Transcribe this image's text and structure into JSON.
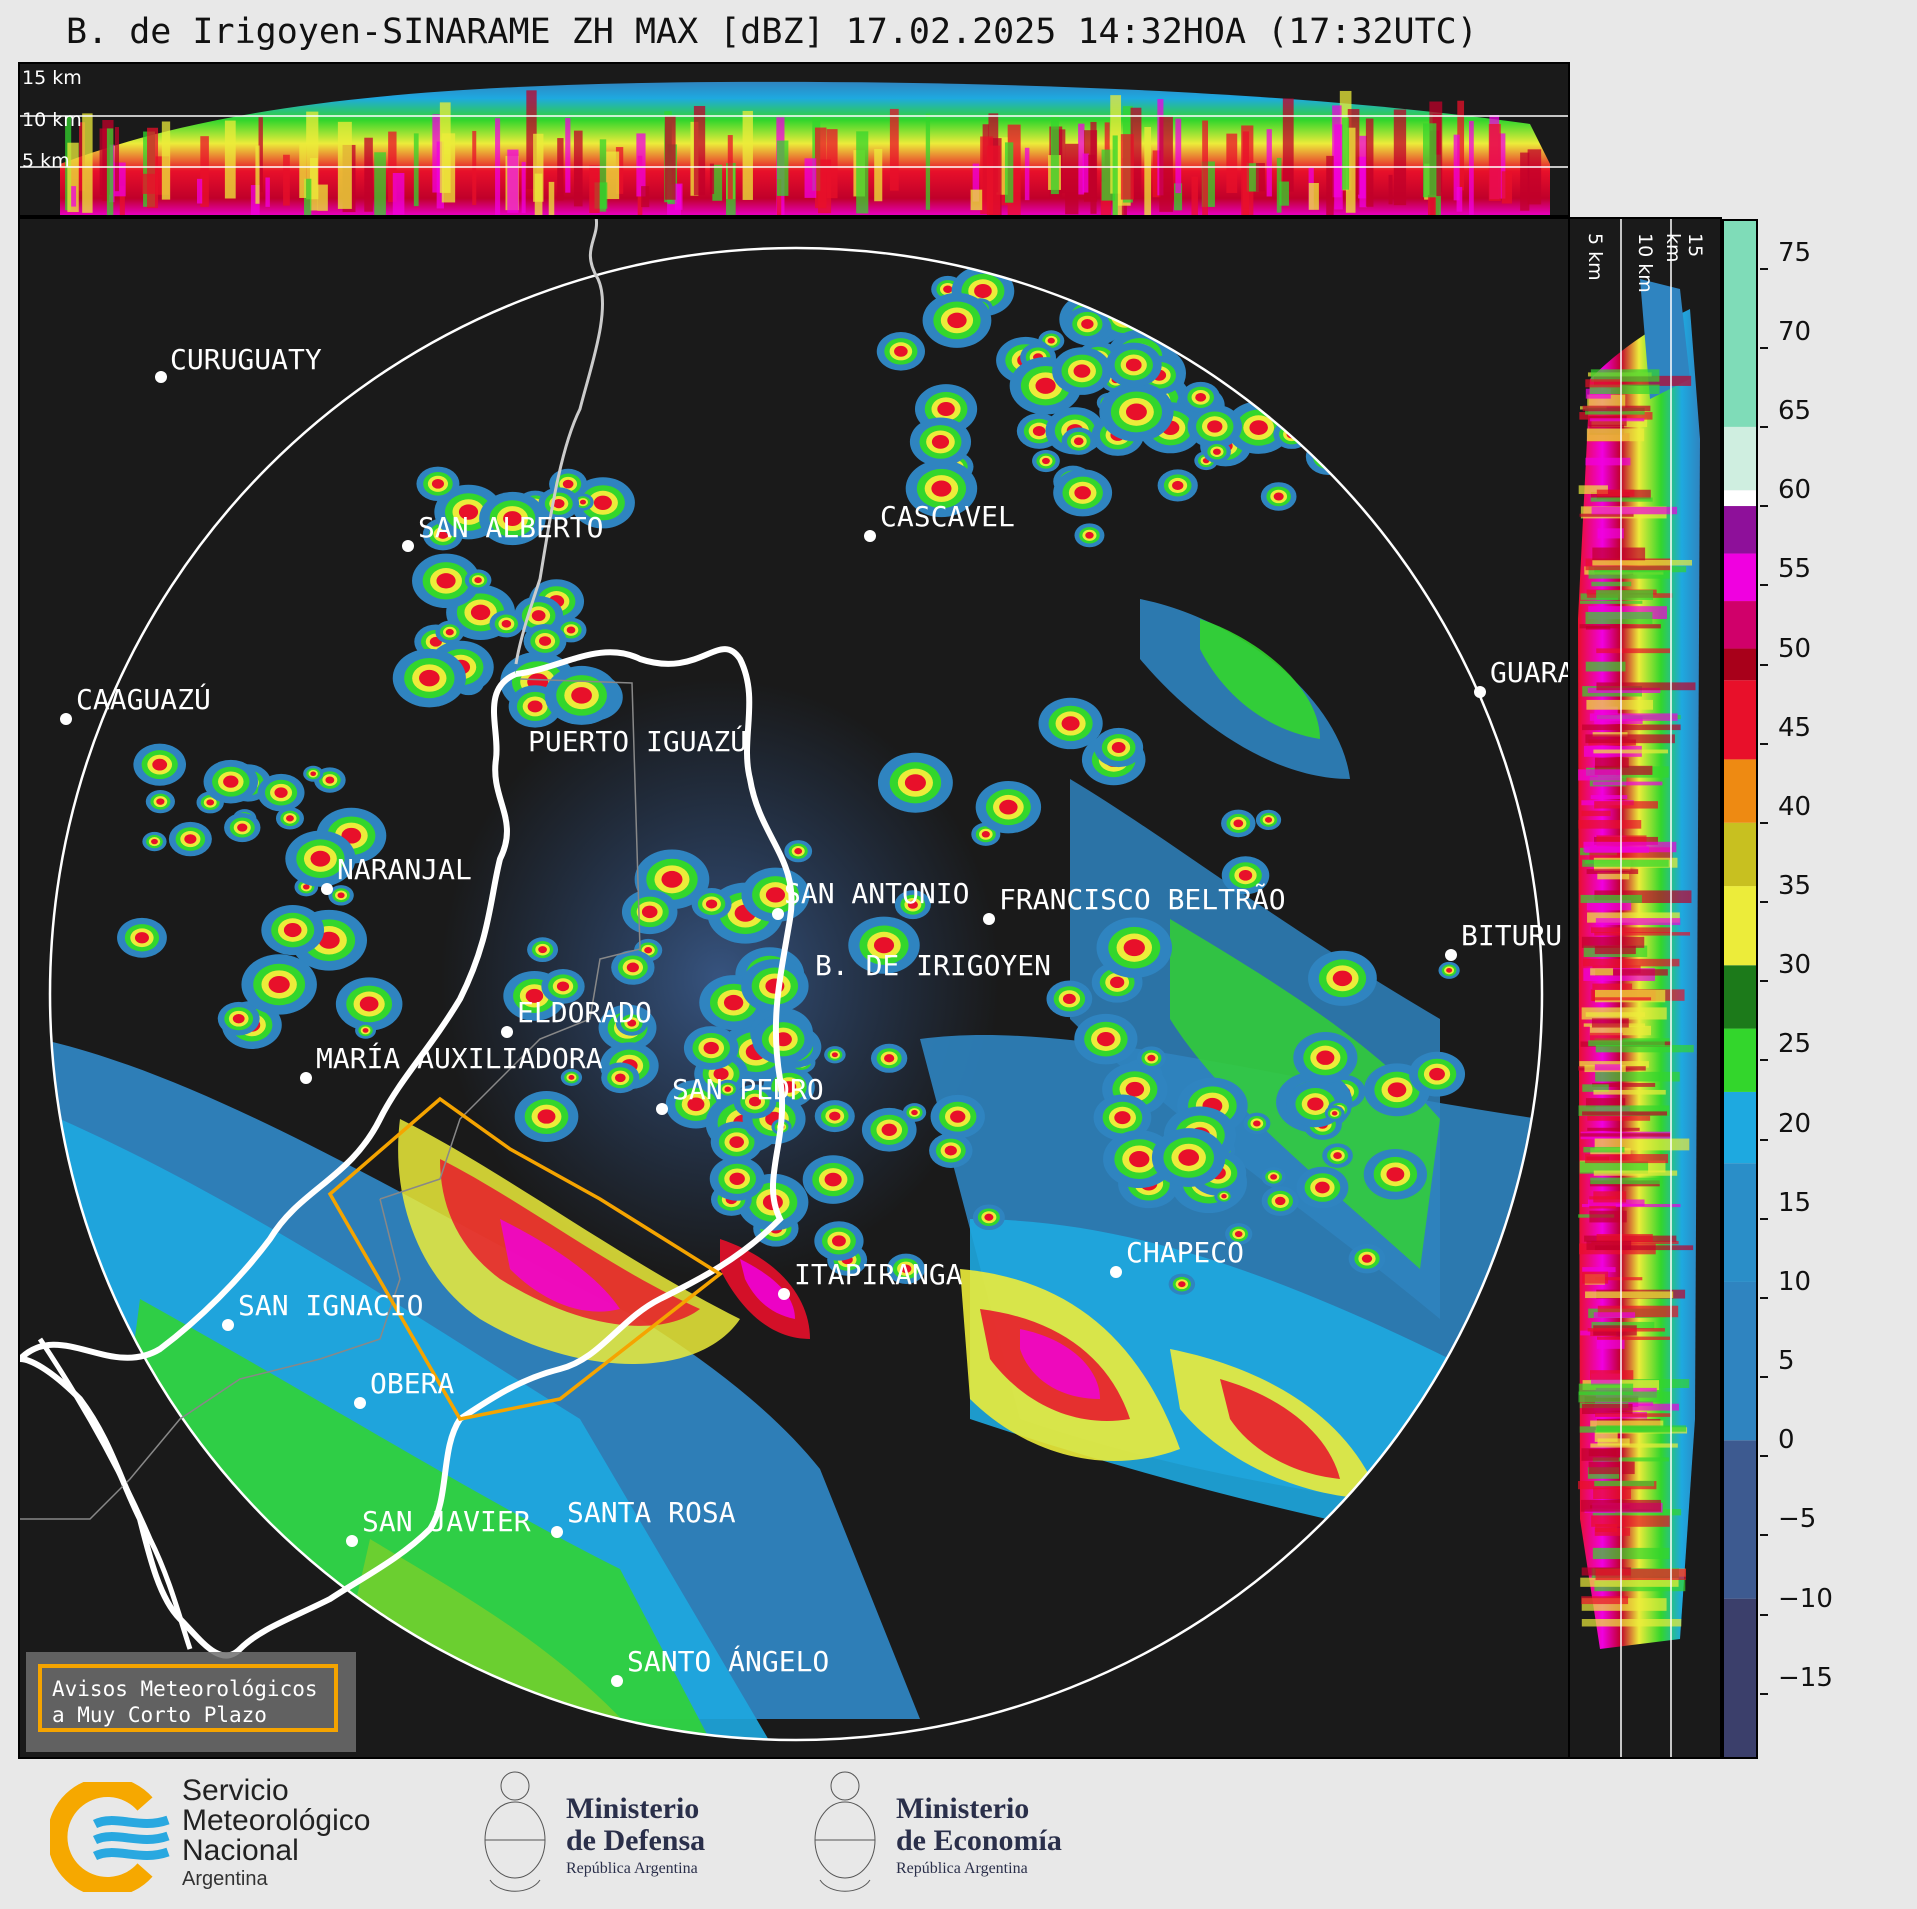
{
  "title": "B. de Irigoyen-SINARAME ZH MAX [dBZ] 17.02.2025 14:32HOA (17:32UTC)",
  "top_panel": {
    "height_labels": [
      "15 km",
      "10 km",
      "5 km"
    ]
  },
  "side_panel": {
    "height_labels": [
      "5 km",
      "10 km",
      "15 km"
    ]
  },
  "colorbar": {
    "unit": "dBZ",
    "range": [
      -20,
      77
    ],
    "ticks": [
      "75",
      "70",
      "65",
      "60",
      "55",
      "50",
      "45",
      "40",
      "35",
      "30",
      "25",
      "20",
      "15",
      "10",
      "5",
      "0",
      "−5",
      "−10",
      "−15"
    ],
    "tick_values": [
      75,
      70,
      65,
      60,
      55,
      50,
      45,
      40,
      35,
      30,
      25,
      20,
      15,
      10,
      5,
      0,
      -5,
      -10,
      -15
    ],
    "colors": {
      "dark_blue": "#3b3f6b",
      "blue": "#2f84c0",
      "light_blue": "#1ea9e0",
      "green": "#33d62c",
      "dark_green": "#1c7a1a",
      "yellow": "#ecec3a",
      "orange": "#ee8a12",
      "red": "#e8102a",
      "dark_red": "#a8001a",
      "magenta": "#f000e0",
      "purple": "#8e109a",
      "white": "#ffffff",
      "mint": "#7fdcb8"
    }
  },
  "map": {
    "cities": [
      {
        "name": "CURUGUATY"
      },
      {
        "name": "SAN ALBERTO"
      },
      {
        "name": "CASCAVEL"
      },
      {
        "name": "CAAGUAZÚ"
      },
      {
        "name": "GUARA"
      },
      {
        "name": "PUERTO IGUAZÚ"
      },
      {
        "name": "NARANJAL"
      },
      {
        "name": "SAN ANTONIO"
      },
      {
        "name": "FRANCISCO BELTRÃO"
      },
      {
        "name": "B. DE IRIGOYEN"
      },
      {
        "name": "BITURU"
      },
      {
        "name": "ELDORADO"
      },
      {
        "name": "MARÍA AUXILIADORA"
      },
      {
        "name": "SAN PEDRO"
      },
      {
        "name": "CHAPECO"
      },
      {
        "name": "ITAPIRANGA"
      },
      {
        "name": "SAN IGNACIO"
      },
      {
        "name": "OBERA"
      },
      {
        "name": "SAN JAVIER"
      },
      {
        "name": "SANTA ROSA"
      },
      {
        "name": "SANTO ÁNGELO"
      }
    ],
    "warning_box": {
      "line1": "Avisos Meteorológicos",
      "line2": "a Muy Corto Plazo"
    }
  },
  "footer": {
    "smn": {
      "line1": "Servicio",
      "line2": "Meteorológico",
      "line3": "Nacional",
      "line4": "Argentina"
    },
    "defensa": {
      "line1": "Ministerio",
      "line2": "de Defensa",
      "line3": "República Argentina"
    },
    "economia": {
      "line1": "Ministerio",
      "line2": "de Economía",
      "line3": "República Argentina"
    }
  }
}
